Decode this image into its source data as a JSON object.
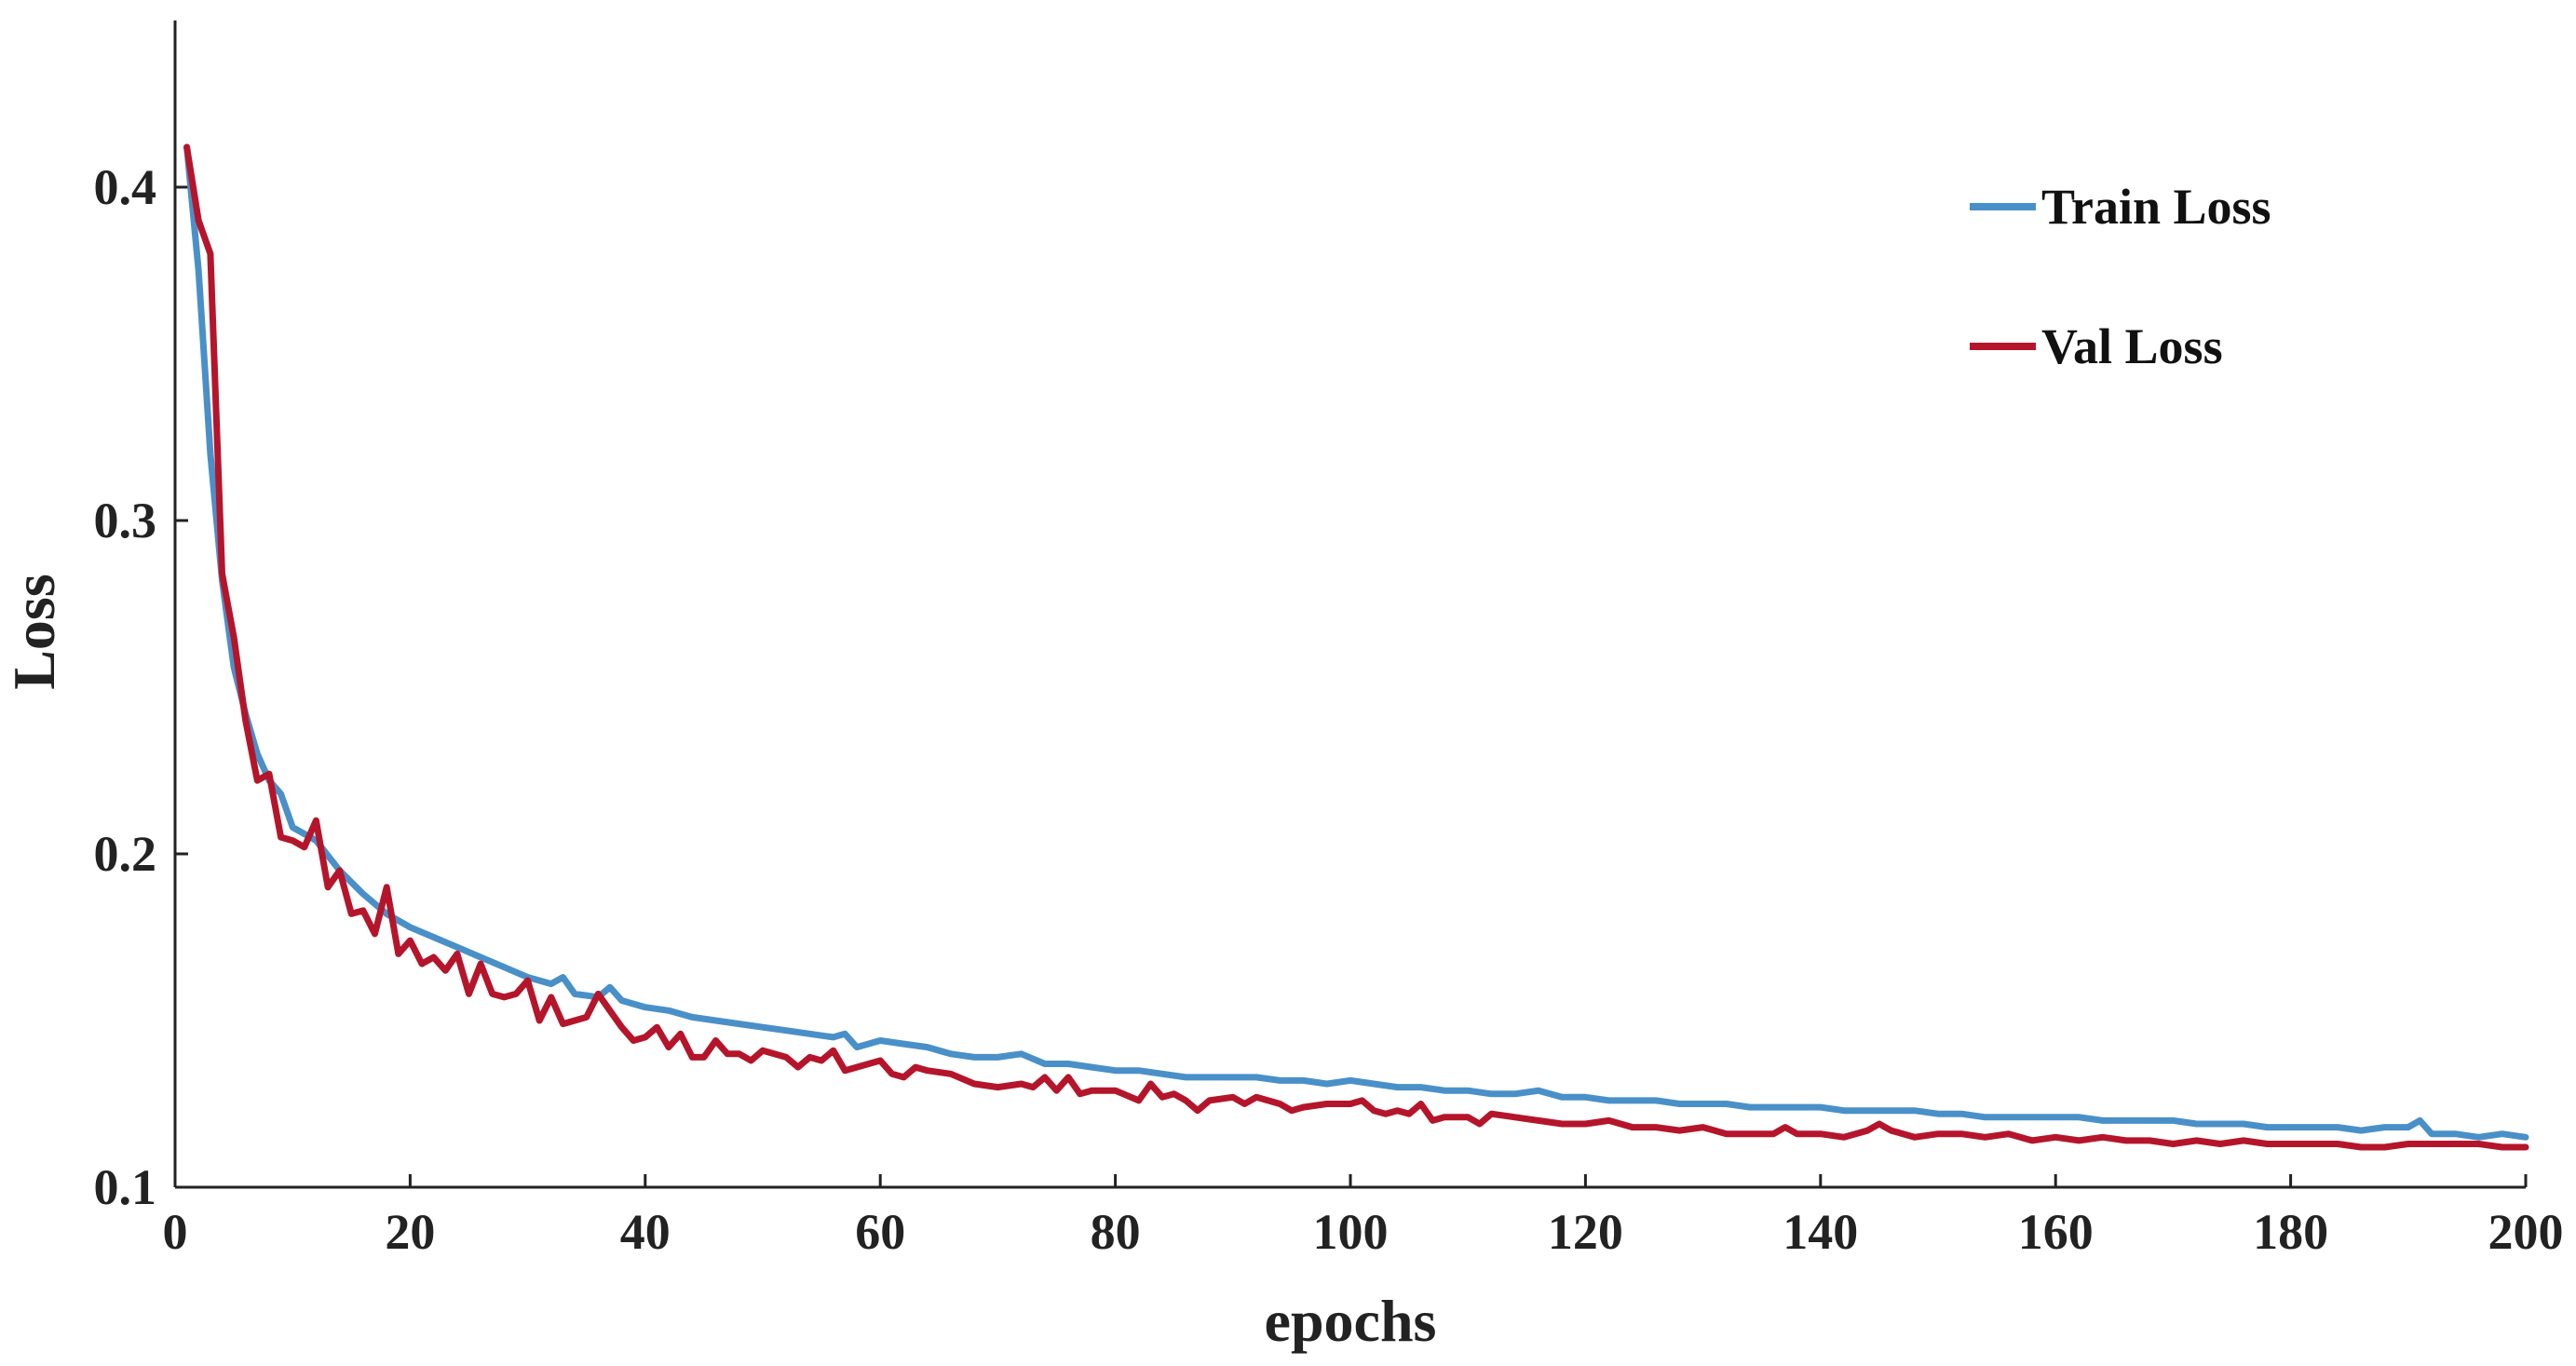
{
  "chart_data": {
    "type": "line",
    "title": "",
    "xlabel": "epochs",
    "ylabel": "Loss",
    "xlim": [
      0,
      200
    ],
    "ylim": [
      0.1,
      0.45
    ],
    "xticks": [
      0,
      20,
      40,
      60,
      80,
      100,
      120,
      140,
      160,
      180,
      200
    ],
    "xtick_labels": [
      "0",
      "20",
      "40",
      "60",
      "80",
      "100",
      "120",
      "140",
      "160",
      "180",
      "200"
    ],
    "yticks": [
      0.1,
      0.2,
      0.3,
      0.4
    ],
    "ytick_labels": [
      "0.1",
      "0.2",
      "0.3",
      "0.4"
    ],
    "grid": false,
    "legend_position": "top-right",
    "series": [
      {
        "name": "Train Loss",
        "color": "#4A90C8",
        "points": [
          [
            1,
            0.412
          ],
          [
            2,
            0.375
          ],
          [
            3,
            0.32
          ],
          [
            4,
            0.282
          ],
          [
            5,
            0.256
          ],
          [
            6,
            0.242
          ],
          [
            7,
            0.23
          ],
          [
            8,
            0.222
          ],
          [
            9,
            0.218
          ],
          [
            10,
            0.208
          ],
          [
            12,
            0.204
          ],
          [
            14,
            0.195
          ],
          [
            16,
            0.188
          ],
          [
            18,
            0.182
          ],
          [
            20,
            0.178
          ],
          [
            22,
            0.175
          ],
          [
            24,
            0.172
          ],
          [
            26,
            0.169
          ],
          [
            28,
            0.166
          ],
          [
            30,
            0.163
          ],
          [
            32,
            0.161
          ],
          [
            33,
            0.163
          ],
          [
            34,
            0.158
          ],
          [
            36,
            0.157
          ],
          [
            37,
            0.16
          ],
          [
            38,
            0.156
          ],
          [
            40,
            0.154
          ],
          [
            42,
            0.153
          ],
          [
            44,
            0.151
          ],
          [
            46,
            0.15
          ],
          [
            48,
            0.149
          ],
          [
            50,
            0.148
          ],
          [
            52,
            0.147
          ],
          [
            54,
            0.146
          ],
          [
            56,
            0.145
          ],
          [
            57,
            0.146
          ],
          [
            58,
            0.142
          ],
          [
            60,
            0.144
          ],
          [
            62,
            0.143
          ],
          [
            64,
            0.142
          ],
          [
            66,
            0.14
          ],
          [
            68,
            0.139
          ],
          [
            70,
            0.139
          ],
          [
            72,
            0.14
          ],
          [
            74,
            0.137
          ],
          [
            76,
            0.137
          ],
          [
            78,
            0.136
          ],
          [
            80,
            0.135
          ],
          [
            82,
            0.135
          ],
          [
            84,
            0.134
          ],
          [
            86,
            0.133
          ],
          [
            88,
            0.133
          ],
          [
            90,
            0.133
          ],
          [
            92,
            0.133
          ],
          [
            94,
            0.132
          ],
          [
            96,
            0.132
          ],
          [
            98,
            0.131
          ],
          [
            100,
            0.132
          ],
          [
            102,
            0.131
          ],
          [
            104,
            0.13
          ],
          [
            106,
            0.13
          ],
          [
            108,
            0.129
          ],
          [
            110,
            0.129
          ],
          [
            112,
            0.128
          ],
          [
            114,
            0.128
          ],
          [
            116,
            0.129
          ],
          [
            118,
            0.127
          ],
          [
            120,
            0.127
          ],
          [
            122,
            0.126
          ],
          [
            124,
            0.126
          ],
          [
            126,
            0.126
          ],
          [
            128,
            0.125
          ],
          [
            130,
            0.125
          ],
          [
            132,
            0.125
          ],
          [
            134,
            0.124
          ],
          [
            136,
            0.124
          ],
          [
            138,
            0.124
          ],
          [
            140,
            0.124
          ],
          [
            142,
            0.123
          ],
          [
            144,
            0.123
          ],
          [
            146,
            0.123
          ],
          [
            148,
            0.123
          ],
          [
            150,
            0.122
          ],
          [
            152,
            0.122
          ],
          [
            154,
            0.121
          ],
          [
            156,
            0.121
          ],
          [
            158,
            0.121
          ],
          [
            160,
            0.121
          ],
          [
            162,
            0.121
          ],
          [
            164,
            0.12
          ],
          [
            166,
            0.12
          ],
          [
            168,
            0.12
          ],
          [
            170,
            0.12
          ],
          [
            172,
            0.119
          ],
          [
            174,
            0.119
          ],
          [
            176,
            0.119
          ],
          [
            178,
            0.118
          ],
          [
            180,
            0.118
          ],
          [
            182,
            0.118
          ],
          [
            184,
            0.118
          ],
          [
            186,
            0.117
          ],
          [
            188,
            0.118
          ],
          [
            190,
            0.118
          ],
          [
            191,
            0.12
          ],
          [
            192,
            0.116
          ],
          [
            194,
            0.116
          ],
          [
            196,
            0.115
          ],
          [
            198,
            0.116
          ],
          [
            200,
            0.115
          ]
        ]
      },
      {
        "name": "Val Loss",
        "color": "#B5152B",
        "points": [
          [
            1,
            0.412
          ],
          [
            2,
            0.39
          ],
          [
            3,
            0.38
          ],
          [
            4,
            0.284
          ],
          [
            5,
            0.265
          ],
          [
            6,
            0.24
          ],
          [
            7,
            0.222
          ],
          [
            8,
            0.224
          ],
          [
            9,
            0.205
          ],
          [
            10,
            0.204
          ],
          [
            11,
            0.202
          ],
          [
            12,
            0.21
          ],
          [
            13,
            0.19
          ],
          [
            14,
            0.195
          ],
          [
            15,
            0.182
          ],
          [
            16,
            0.183
          ],
          [
            17,
            0.176
          ],
          [
            18,
            0.19
          ],
          [
            19,
            0.17
          ],
          [
            20,
            0.174
          ],
          [
            21,
            0.167
          ],
          [
            22,
            0.169
          ],
          [
            23,
            0.165
          ],
          [
            24,
            0.17
          ],
          [
            25,
            0.158
          ],
          [
            26,
            0.167
          ],
          [
            27,
            0.158
          ],
          [
            28,
            0.157
          ],
          [
            29,
            0.158
          ],
          [
            30,
            0.162
          ],
          [
            31,
            0.15
          ],
          [
            32,
            0.157
          ],
          [
            33,
            0.149
          ],
          [
            34,
            0.15
          ],
          [
            35,
            0.151
          ],
          [
            36,
            0.158
          ],
          [
            37,
            0.153
          ],
          [
            38,
            0.148
          ],
          [
            39,
            0.144
          ],
          [
            40,
            0.145
          ],
          [
            41,
            0.148
          ],
          [
            42,
            0.142
          ],
          [
            43,
            0.146
          ],
          [
            44,
            0.139
          ],
          [
            45,
            0.139
          ],
          [
            46,
            0.144
          ],
          [
            47,
            0.14
          ],
          [
            48,
            0.14
          ],
          [
            49,
            0.138
          ],
          [
            50,
            0.141
          ],
          [
            52,
            0.139
          ],
          [
            53,
            0.136
          ],
          [
            54,
            0.139
          ],
          [
            55,
            0.138
          ],
          [
            56,
            0.141
          ],
          [
            57,
            0.135
          ],
          [
            58,
            0.136
          ],
          [
            60,
            0.138
          ],
          [
            61,
            0.134
          ],
          [
            62,
            0.133
          ],
          [
            63,
            0.136
          ],
          [
            64,
            0.135
          ],
          [
            66,
            0.134
          ],
          [
            68,
            0.131
          ],
          [
            70,
            0.13
          ],
          [
            72,
            0.131
          ],
          [
            73,
            0.13
          ],
          [
            74,
            0.133
          ],
          [
            75,
            0.129
          ],
          [
            76,
            0.133
          ],
          [
            77,
            0.128
          ],
          [
            78,
            0.129
          ],
          [
            80,
            0.129
          ],
          [
            82,
            0.126
          ],
          [
            83,
            0.131
          ],
          [
            84,
            0.127
          ],
          [
            85,
            0.128
          ],
          [
            86,
            0.126
          ],
          [
            87,
            0.123
          ],
          [
            88,
            0.126
          ],
          [
            90,
            0.127
          ],
          [
            91,
            0.125
          ],
          [
            92,
            0.127
          ],
          [
            94,
            0.125
          ],
          [
            95,
            0.123
          ],
          [
            96,
            0.124
          ],
          [
            98,
            0.125
          ],
          [
            100,
            0.125
          ],
          [
            101,
            0.126
          ],
          [
            102,
            0.123
          ],
          [
            103,
            0.122
          ],
          [
            104,
            0.123
          ],
          [
            105,
            0.122
          ],
          [
            106,
            0.125
          ],
          [
            107,
            0.12
          ],
          [
            108,
            0.121
          ],
          [
            110,
            0.121
          ],
          [
            111,
            0.119
          ],
          [
            112,
            0.122
          ],
          [
            114,
            0.121
          ],
          [
            116,
            0.12
          ],
          [
            118,
            0.119
          ],
          [
            120,
            0.119
          ],
          [
            122,
            0.12
          ],
          [
            124,
            0.118
          ],
          [
            126,
            0.118
          ],
          [
            128,
            0.117
          ],
          [
            130,
            0.118
          ],
          [
            132,
            0.116
          ],
          [
            134,
            0.116
          ],
          [
            136,
            0.116
          ],
          [
            137,
            0.118
          ],
          [
            138,
            0.116
          ],
          [
            140,
            0.116
          ],
          [
            142,
            0.115
          ],
          [
            144,
            0.117
          ],
          [
            145,
            0.119
          ],
          [
            146,
            0.117
          ],
          [
            148,
            0.115
          ],
          [
            150,
            0.116
          ],
          [
            152,
            0.116
          ],
          [
            154,
            0.115
          ],
          [
            156,
            0.116
          ],
          [
            158,
            0.114
          ],
          [
            160,
            0.115
          ],
          [
            162,
            0.114
          ],
          [
            164,
            0.115
          ],
          [
            166,
            0.114
          ],
          [
            168,
            0.114
          ],
          [
            170,
            0.113
          ],
          [
            172,
            0.114
          ],
          [
            174,
            0.113
          ],
          [
            176,
            0.114
          ],
          [
            178,
            0.113
          ],
          [
            180,
            0.113
          ],
          [
            182,
            0.113
          ],
          [
            184,
            0.113
          ],
          [
            186,
            0.112
          ],
          [
            188,
            0.112
          ],
          [
            190,
            0.113
          ],
          [
            192,
            0.113
          ],
          [
            194,
            0.113
          ],
          [
            196,
            0.113
          ],
          [
            198,
            0.112
          ],
          [
            200,
            0.112
          ]
        ]
      }
    ]
  }
}
